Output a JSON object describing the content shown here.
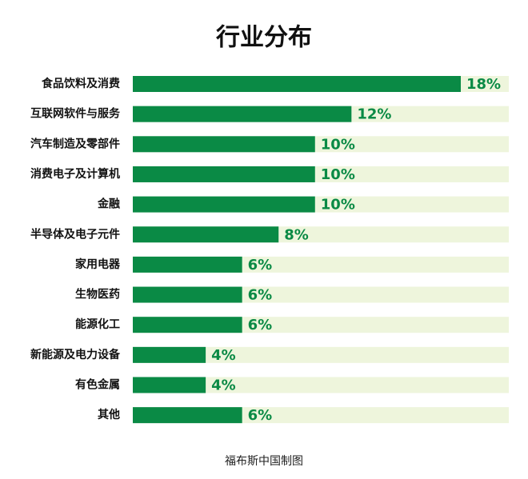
{
  "chart_data": {
    "type": "bar",
    "orientation": "horizontal",
    "title": "行业分布",
    "categories": [
      "食品饮料及消费",
      "互联网软件与服务",
      "汽车制造及零部件",
      "消费电子及计算机",
      "金融",
      "半导体及电子元件",
      "家用电器",
      "生物医药",
      "能源化工",
      "新能源及电力设备",
      "有色金属",
      "其他"
    ],
    "values": [
      18,
      12,
      10,
      10,
      10,
      8,
      6,
      6,
      6,
      4,
      4,
      6
    ],
    "value_labels": [
      "18%",
      "12%",
      "10%",
      "10%",
      "10%",
      "8%",
      "6%",
      "6%",
      "6%",
      "4%",
      "4%",
      "6%"
    ],
    "color": "#0a8a45",
    "track_color": "#eef5dc",
    "source": "福布斯中国制图"
  }
}
